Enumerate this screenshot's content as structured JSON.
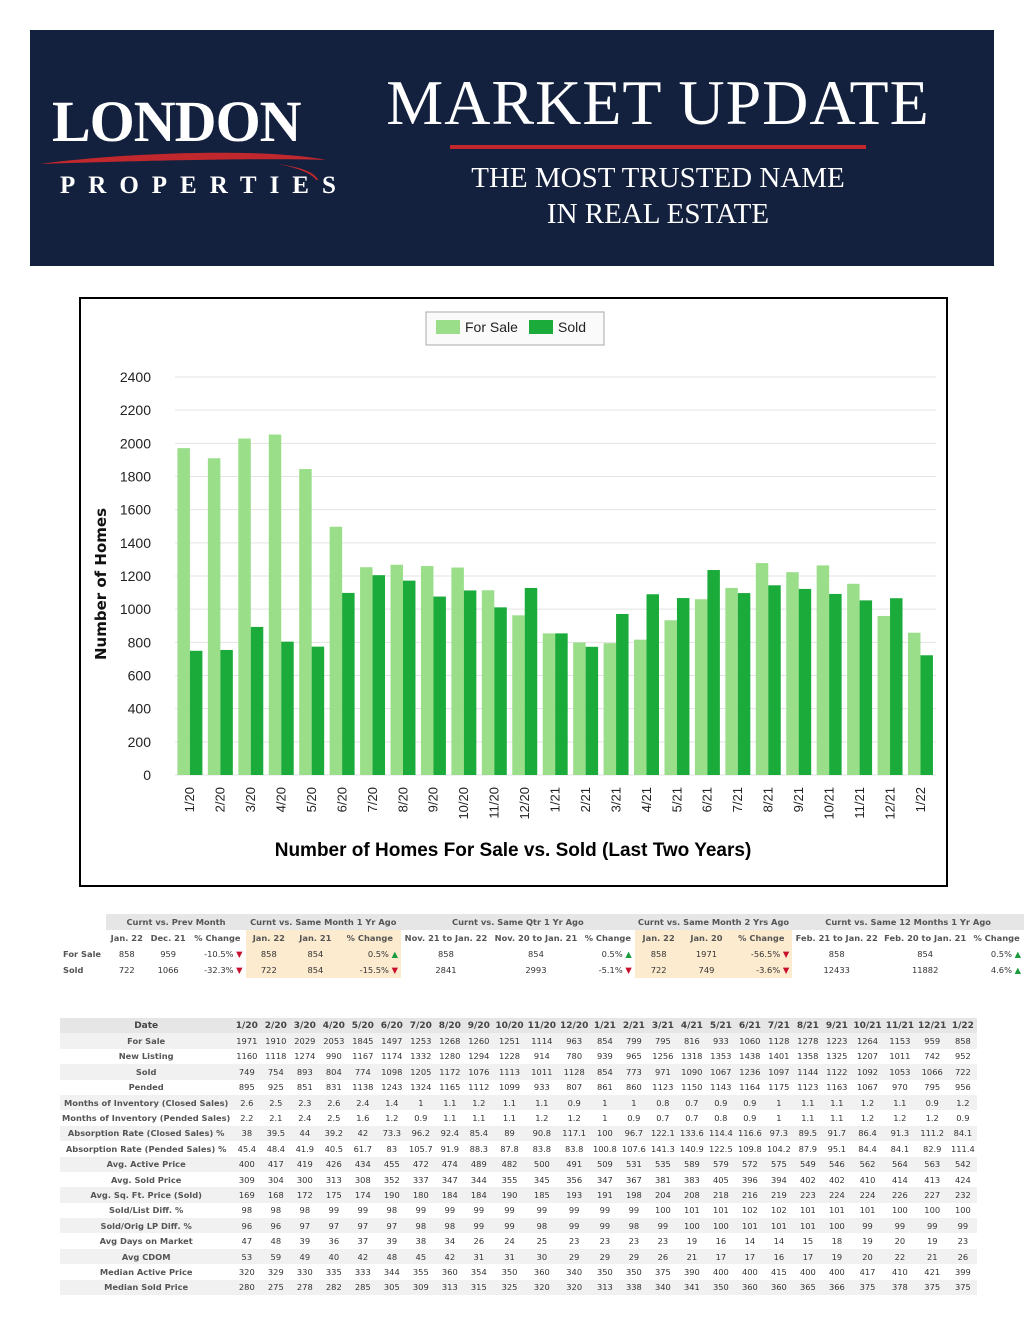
{
  "header": {
    "logo_main": "LONDON",
    "logo_sub": "PROPERTIES",
    "title": "MARKET UPDATE",
    "tagline_1": "THE MOST TRUSTED NAME",
    "tagline_2": "IN REAL ESTATE"
  },
  "colors": {
    "navy": "#13213f",
    "accent_red": "#c0282d",
    "for_sale": "#9ade8a",
    "sold": "#1aab3a",
    "highlight": "#fdebcf"
  },
  "chart_data": {
    "type": "bar",
    "title": "Number of Homes For Sale vs. Sold (Last Two Years)",
    "ylabel": "Number of Homes",
    "xlabel": "",
    "ylim": [
      0,
      2400
    ],
    "yticks": [
      0,
      200,
      400,
      600,
      800,
      1000,
      1200,
      1400,
      1600,
      1800,
      2000,
      2200,
      2400
    ],
    "grid": true,
    "legend": "top-center",
    "categories": [
      "1/20",
      "2/20",
      "3/20",
      "4/20",
      "5/20",
      "6/20",
      "7/20",
      "8/20",
      "9/20",
      "10/20",
      "11/20",
      "12/20",
      "1/21",
      "2/21",
      "3/21",
      "4/21",
      "5/21",
      "6/21",
      "7/21",
      "8/21",
      "9/21",
      "10/21",
      "11/21",
      "12/21",
      "1/22"
    ],
    "series": [
      {
        "name": "For Sale",
        "color": "#9ade8a",
        "values": [
          1971,
          1910,
          2029,
          2053,
          1845,
          1497,
          1253,
          1268,
          1260,
          1251,
          1114,
          963,
          854,
          799,
          795,
          816,
          933,
          1060,
          1128,
          1278,
          1223,
          1264,
          1153,
          959,
          858
        ]
      },
      {
        "name": "Sold",
        "color": "#1aab3a",
        "values": [
          749,
          754,
          893,
          804,
          774,
          1098,
          1205,
          1172,
          1076,
          1113,
          1011,
          1128,
          854,
          773,
          971,
          1090,
          1067,
          1236,
          1097,
          1144,
          1122,
          1092,
          1053,
          1066,
          722
        ]
      }
    ]
  },
  "comparison": {
    "groups": [
      "Curnt vs. Prev Month",
      "Curnt vs. Same Month 1 Yr Ago",
      "Curnt vs. Same Qtr 1 Yr Ago",
      "Curnt vs. Same Month 2 Yrs Ago",
      "Curnt vs. Same 12 Months 1 Yr Ago"
    ],
    "sub": [
      "Jan. 22",
      "Dec. 21",
      "% Change",
      "Jan. 22",
      "Jan. 21",
      "% Change",
      "Nov. 21 to Jan. 22",
      "Nov. 20 to Jan. 21",
      "% Change",
      "Jan. 22",
      "Jan. 20",
      "% Change",
      "Feb. 21 to Jan. 22",
      "Feb. 20 to Jan. 21",
      "% Change"
    ],
    "rows": [
      {
        "label": "For Sale",
        "cells": [
          "858",
          "959",
          "-10.5%",
          "858",
          "854",
          "0.5%",
          "858",
          "854",
          "0.5%",
          "858",
          "1971",
          "-56.5%",
          "858",
          "854",
          "0.5%"
        ],
        "dirs": [
          "down",
          "up",
          "up",
          "down",
          "up"
        ]
      },
      {
        "label": "Sold",
        "cells": [
          "722",
          "1066",
          "-32.3%",
          "722",
          "854",
          "-15.5%",
          "2841",
          "2993",
          "-5.1%",
          "722",
          "749",
          "-3.6%",
          "12433",
          "11882",
          "4.6%"
        ],
        "dirs": [
          "down",
          "down",
          "down",
          "down",
          "up"
        ]
      }
    ]
  },
  "stats": {
    "header": [
      "Date",
      "1/20",
      "2/20",
      "3/20",
      "4/20",
      "5/20",
      "6/20",
      "7/20",
      "8/20",
      "9/20",
      "10/20",
      "11/20",
      "12/20",
      "1/21",
      "2/21",
      "3/21",
      "4/21",
      "5/21",
      "6/21",
      "7/21",
      "8/21",
      "9/21",
      "10/21",
      "11/21",
      "12/21",
      "1/22"
    ],
    "rows": [
      [
        "For Sale",
        "1971",
        "1910",
        "2029",
        "2053",
        "1845",
        "1497",
        "1253",
        "1268",
        "1260",
        "1251",
        "1114",
        "963",
        "854",
        "799",
        "795",
        "816",
        "933",
        "1060",
        "1128",
        "1278",
        "1223",
        "1264",
        "1153",
        "959",
        "858"
      ],
      [
        "New Listing",
        "1160",
        "1118",
        "1274",
        "990",
        "1167",
        "1174",
        "1332",
        "1280",
        "1294",
        "1228",
        "914",
        "780",
        "939",
        "965",
        "1256",
        "1318",
        "1353",
        "1438",
        "1401",
        "1358",
        "1325",
        "1207",
        "1011",
        "742",
        "952"
      ],
      [
        "Sold",
        "749",
        "754",
        "893",
        "804",
        "774",
        "1098",
        "1205",
        "1172",
        "1076",
        "1113",
        "1011",
        "1128",
        "854",
        "773",
        "971",
        "1090",
        "1067",
        "1236",
        "1097",
        "1144",
        "1122",
        "1092",
        "1053",
        "1066",
        "722"
      ],
      [
        "Pended",
        "895",
        "925",
        "851",
        "831",
        "1138",
        "1243",
        "1324",
        "1165",
        "1112",
        "1099",
        "933",
        "807",
        "861",
        "860",
        "1123",
        "1150",
        "1143",
        "1164",
        "1175",
        "1123",
        "1163",
        "1067",
        "970",
        "795",
        "956"
      ],
      [
        "Months of Inventory (Closed Sales)",
        "2.6",
        "2.5",
        "2.3",
        "2.6",
        "2.4",
        "1.4",
        "1",
        "1.1",
        "1.2",
        "1.1",
        "1.1",
        "0.9",
        "1",
        "1",
        "0.8",
        "0.7",
        "0.9",
        "0.9",
        "1",
        "1.1",
        "1.1",
        "1.2",
        "1.1",
        "0.9",
        "1.2"
      ],
      [
        "Months of Inventory (Pended Sales)",
        "2.2",
        "2.1",
        "2.4",
        "2.5",
        "1.6",
        "1.2",
        "0.9",
        "1.1",
        "1.1",
        "1.1",
        "1.2",
        "1.2",
        "1",
        "0.9",
        "0.7",
        "0.7",
        "0.8",
        "0.9",
        "1",
        "1.1",
        "1.1",
        "1.2",
        "1.2",
        "1.2",
        "0.9"
      ],
      [
        "Absorption Rate (Closed Sales) %",
        "38",
        "39.5",
        "44",
        "39.2",
        "42",
        "73.3",
        "96.2",
        "92.4",
        "85.4",
        "89",
        "90.8",
        "117.1",
        "100",
        "96.7",
        "122.1",
        "133.6",
        "114.4",
        "116.6",
        "97.3",
        "89.5",
        "91.7",
        "86.4",
        "91.3",
        "111.2",
        "84.1"
      ],
      [
        "Absorption Rate (Pended Sales) %",
        "45.4",
        "48.4",
        "41.9",
        "40.5",
        "61.7",
        "83",
        "105.7",
        "91.9",
        "88.3",
        "87.8",
        "83.8",
        "83.8",
        "100.8",
        "107.6",
        "141.3",
        "140.9",
        "122.5",
        "109.8",
        "104.2",
        "87.9",
        "95.1",
        "84.4",
        "84.1",
        "82.9",
        "111.4"
      ],
      [
        "Avg. Active Price",
        "400",
        "417",
        "419",
        "426",
        "434",
        "455",
        "472",
        "474",
        "489",
        "482",
        "500",
        "491",
        "509",
        "531",
        "535",
        "589",
        "579",
        "572",
        "575",
        "549",
        "546",
        "562",
        "564",
        "563",
        "542"
      ],
      [
        "Avg. Sold Price",
        "309",
        "304",
        "300",
        "313",
        "308",
        "352",
        "337",
        "347",
        "344",
        "355",
        "345",
        "356",
        "347",
        "367",
        "381",
        "383",
        "405",
        "396",
        "394",
        "402",
        "402",
        "410",
        "414",
        "413",
        "424"
      ],
      [
        "Avg. Sq. Ft. Price (Sold)",
        "169",
        "168",
        "172",
        "175",
        "174",
        "190",
        "180",
        "184",
        "184",
        "190",
        "185",
        "193",
        "191",
        "198",
        "204",
        "208",
        "218",
        "216",
        "219",
        "223",
        "224",
        "224",
        "226",
        "227",
        "232"
      ],
      [
        "Sold/List Diff. %",
        "98",
        "98",
        "98",
        "99",
        "99",
        "98",
        "99",
        "99",
        "99",
        "99",
        "99",
        "99",
        "99",
        "99",
        "100",
        "101",
        "101",
        "102",
        "102",
        "101",
        "101",
        "101",
        "100",
        "100",
        "100"
      ],
      [
        "Sold/Orig LP Diff. %",
        "96",
        "96",
        "97",
        "97",
        "97",
        "97",
        "98",
        "98",
        "99",
        "99",
        "98",
        "99",
        "99",
        "98",
        "99",
        "100",
        "100",
        "101",
        "101",
        "101",
        "100",
        "99",
        "99",
        "99",
        "99"
      ],
      [
        "Avg Days on Market",
        "47",
        "48",
        "39",
        "36",
        "37",
        "39",
        "38",
        "34",
        "26",
        "24",
        "25",
        "23",
        "23",
        "23",
        "23",
        "19",
        "16",
        "14",
        "14",
        "15",
        "18",
        "19",
        "20",
        "19",
        "23"
      ],
      [
        "Avg CDOM",
        "53",
        "59",
        "49",
        "40",
        "42",
        "48",
        "45",
        "42",
        "31",
        "31",
        "30",
        "29",
        "29",
        "29",
        "26",
        "21",
        "17",
        "17",
        "16",
        "17",
        "19",
        "20",
        "22",
        "21",
        "26"
      ],
      [
        "Median Active Price",
        "320",
        "329",
        "330",
        "335",
        "333",
        "344",
        "355",
        "360",
        "354",
        "350",
        "360",
        "340",
        "350",
        "350",
        "375",
        "390",
        "400",
        "400",
        "415",
        "400",
        "400",
        "417",
        "410",
        "421",
        "399"
      ],
      [
        "Median Sold Price",
        "280",
        "275",
        "278",
        "282",
        "285",
        "305",
        "309",
        "313",
        "315",
        "325",
        "320",
        "320",
        "313",
        "338",
        "340",
        "341",
        "350",
        "360",
        "360",
        "365",
        "366",
        "375",
        "378",
        "375",
        "375"
      ]
    ]
  }
}
